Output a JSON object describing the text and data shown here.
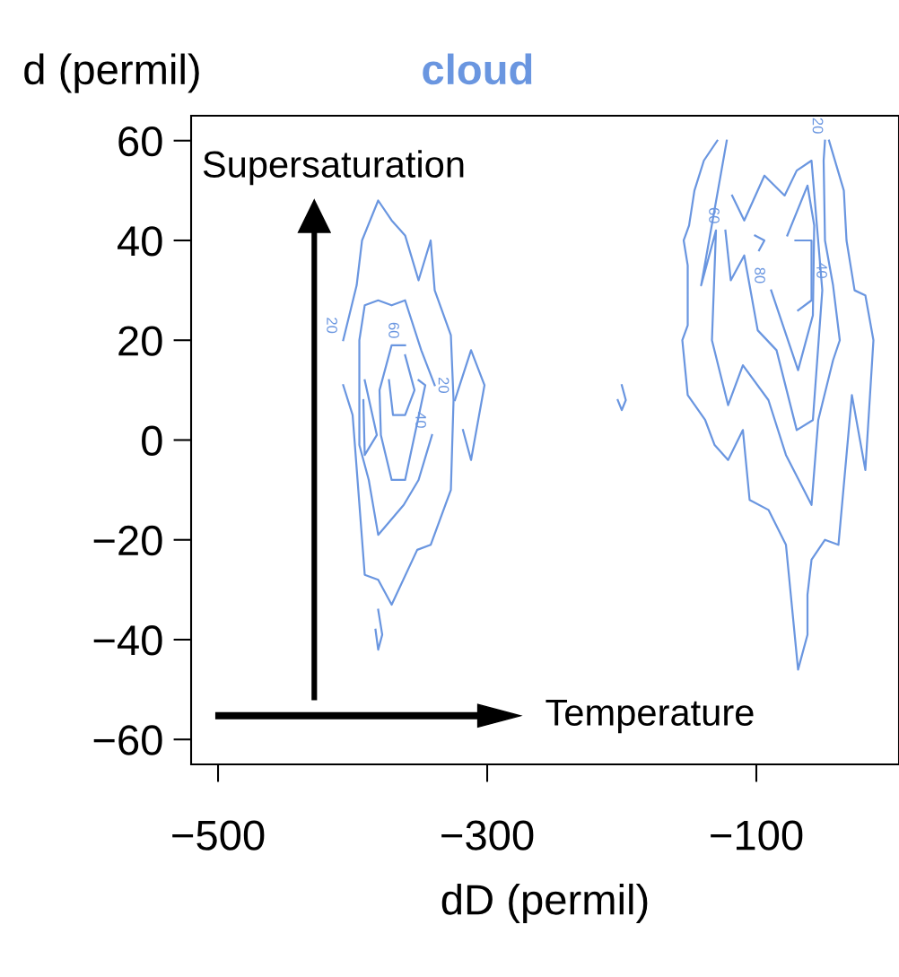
{
  "chart_data": {
    "type": "line",
    "title": "cloud",
    "ylabel": "d (permil)",
    "xlabel": "dD (permil)",
    "xlim": [
      -520,
      6
    ],
    "ylim": [
      -65,
      65
    ],
    "xticks": [
      {
        "value": -500,
        "label": "−500"
      },
      {
        "value": -300,
        "label": "−300"
      },
      {
        "value": -100,
        "label": "−100"
      }
    ],
    "yticks": [
      {
        "value": -60,
        "label": "−60"
      },
      {
        "value": -40,
        "label": "−40"
      },
      {
        "value": -20,
        "label": "−20"
      },
      0,
      20,
      40,
      60
    ],
    "grid": false,
    "marker": "none",
    "line_style": "solid",
    "series": [
      {
        "color": "#6a96e0",
        "x": [
          -407,
          -397,
          -393,
          -381,
          -371,
          -361,
          -351,
          -342,
          -339,
          -327,
          -325,
          -327,
          -342,
          -352,
          -371,
          -381,
          -391,
          -400,
          -407
        ],
        "values": [
          20,
          31,
          40,
          48,
          44,
          41,
          32,
          40,
          30,
          21,
          8,
          -10,
          -21,
          -22,
          -33,
          -28,
          -27,
          5,
          11
        ]
      },
      {
        "color": "#6a96e0",
        "x": [
          -341,
          -351,
          -362,
          -381,
          -388,
          -395,
          -395,
          -391,
          -381,
          -371,
          -361,
          -349,
          -339
        ],
        "values": [
          1,
          -8,
          -13,
          -19,
          -8,
          -1,
          20,
          27,
          28,
          27,
          28,
          18,
          11
        ]
      },
      {
        "color": "#6a96e0",
        "x": [
          -351,
          -346,
          -361,
          -371,
          -379,
          -380,
          -371,
          -361
        ],
        "values": [
          12,
          11,
          -8,
          -8,
          1,
          10,
          19,
          19
        ]
      },
      {
        "color": "#6a96e0",
        "x": [
          -373,
          -370,
          -361,
          -354,
          -361
        ],
        "values": [
          12,
          5,
          5,
          10,
          17
        ]
      },
      {
        "color": "#6a96e0",
        "x": [
          -391,
          -382,
          -391,
          -392
        ],
        "values": [
          12,
          1,
          -3,
          8
        ]
      },
      {
        "color": "#6a96e0",
        "x": [
          -324,
          -312,
          -302,
          -312,
          -318
        ],
        "values": [
          8,
          18,
          11,
          -4,
          2
        ]
      },
      {
        "color": "#6a96e0",
        "x": [
          -381,
          -378,
          -381,
          -383
        ],
        "values": [
          -34,
          -39,
          -42,
          -38
        ]
      },
      {
        "color": "#6a96e0",
        "x": [
          -200,
          -197,
          -200,
          -203
        ],
        "values": [
          11,
          8,
          6,
          8
        ]
      },
      {
        "color": "#6a96e0",
        "x": [
          -129,
          -139,
          -146,
          -150,
          -154,
          -151,
          -151,
          -155,
          -151,
          -138,
          -131,
          -121,
          -110,
          -105,
          -91,
          -78,
          -69,
          -62,
          -62,
          -59,
          -49,
          -39,
          -29,
          -19,
          -13,
          -19,
          -27,
          -33,
          -35,
          -46
        ],
        "values": [
          60,
          56,
          50,
          43,
          40,
          35,
          23,
          20,
          9,
          4,
          -1,
          -4,
          2,
          -12,
          -14,
          -21,
          -46,
          -39,
          -31,
          -24,
          -20,
          -21,
          9,
          -6,
          20,
          29,
          30,
          40,
          50,
          60
        ]
      },
      {
        "color": "#6a96e0",
        "x": [
          -122,
          -141,
          -130,
          -133,
          -121,
          -110,
          -91,
          -78,
          -59,
          -54,
          -43,
          -38,
          -43,
          -49,
          -50,
          -49
        ],
        "values": [
          60,
          31,
          42,
          20,
          7,
          15,
          8,
          -3,
          -13,
          4,
          16,
          20,
          31,
          40,
          56,
          60
        ]
      },
      {
        "color": "#6a96e0",
        "x": [
          -123,
          -119,
          -109,
          -99,
          -85,
          -70,
          -58,
          -51,
          -59,
          -70,
          -79,
          -94,
          -109,
          -118
        ],
        "values": [
          42,
          32,
          37,
          22,
          18,
          2,
          4,
          30,
          56,
          54,
          49,
          53,
          44,
          49
        ]
      },
      {
        "color": "#6a96e0",
        "x": [
          -89,
          -69,
          -58,
          -57,
          -62,
          -77
        ],
        "values": [
          30,
          14,
          25,
          43,
          51,
          41
        ]
      },
      {
        "color": "#6a96e0",
        "x": [
          -71,
          -59,
          -59,
          -69
        ],
        "values": [
          40,
          40,
          28,
          26
        ]
      },
      {
        "color": "#6a96e0",
        "x": [
          -101,
          -94,
          -98
        ],
        "values": [
          41,
          40,
          38
        ]
      }
    ],
    "annotations": [
      {
        "text": "20",
        "x": -407,
        "y": 20
      },
      {
        "text": "60",
        "x": -361,
        "y": 19
      },
      {
        "text": "40",
        "x": -341,
        "y": 1
      },
      {
        "text": "20",
        "x": -324,
        "y": 8
      },
      {
        "text": "60",
        "x": -123,
        "y": 42
      },
      {
        "text": "80",
        "x": -89,
        "y": 30
      },
      {
        "text": "40",
        "x": -43,
        "y": 31
      },
      {
        "text": "20",
        "x": -46,
        "y": 60
      },
      "Supersaturation",
      "Temperature"
    ]
  }
}
